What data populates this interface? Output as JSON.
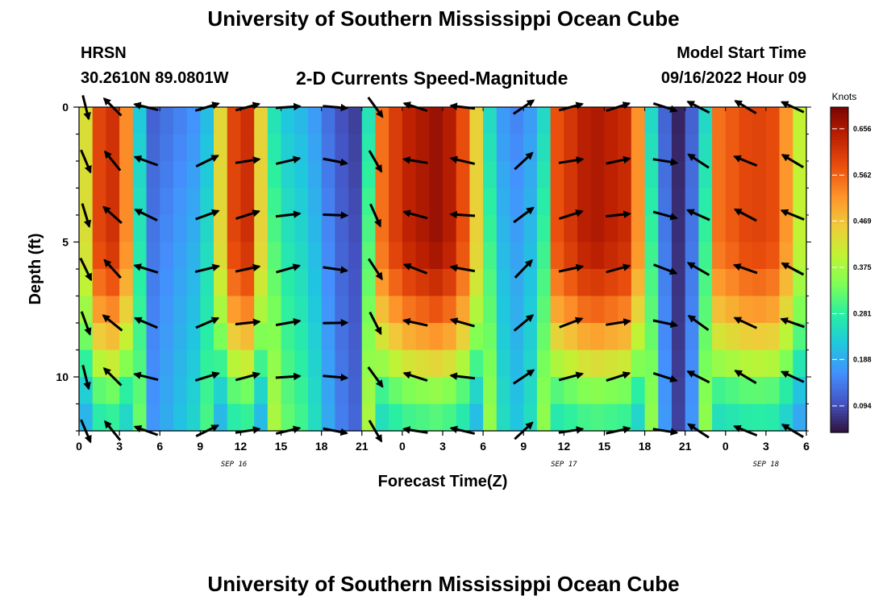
{
  "header": {
    "title_top": "University of Southern Mississippi Ocean Cube",
    "station": "HRSN",
    "coords": "30.2610N  89.0801W",
    "plot_title": "2-D Currents Speed-Magnitude",
    "model_label": "Model Start Time",
    "model_time": "09/16/2022 Hour 09",
    "title_bottom": "University of Southern Mississippi Ocean Cube"
  },
  "chart_data": {
    "type": "heatmap",
    "title": "2-D Currents Speed-Magnitude",
    "xlabel": "Forecast Time(Z)",
    "ylabel": "Depth (ft)",
    "x_range_hours": [
      0,
      54
    ],
    "ylim": [
      0,
      12
    ],
    "x_tick_labels": [
      "0",
      "3",
      "6",
      "9",
      "12",
      "15",
      "18",
      "21",
      "0",
      "3",
      "6",
      "9",
      "12",
      "15",
      "18",
      "21",
      "0",
      "3",
      "6"
    ],
    "y_ticks": [
      0,
      5,
      10
    ],
    "date_labels": [
      {
        "text": "SEP 16",
        "hour": 11.5
      },
      {
        "text": "SEP 17",
        "hour": 36
      },
      {
        "text": "SEP 18",
        "hour": 51
      }
    ],
    "colorbar": {
      "label": "Knots",
      "ticks": [
        0.094,
        0.188,
        0.281,
        0.375,
        0.469,
        0.562,
        0.656
      ],
      "tick_labels": [
        "0.094",
        "0.188",
        "0.281",
        "0.375",
        "0.469",
        "0.562",
        "0.656"
      ],
      "range": [
        0.04,
        0.7
      ],
      "colors": [
        "#30123b",
        "#4454c4",
        "#4490fe",
        "#1fc8de",
        "#29efa2",
        "#7dff56",
        "#c1f334",
        "#f1ca3a",
        "#fe922a",
        "#ea4f0d",
        "#be2102",
        "#7a0403"
      ]
    },
    "speed_depth_pattern": [
      0.52,
      0.56,
      0.56,
      0.56,
      0.56,
      0.56,
      0.55,
      0.52,
      0.48,
      0.43,
      0.37,
      0.3,
      0.26
    ],
    "speed_time_profile": [
      {
        "hour": 0,
        "speed": 0.28
      },
      {
        "hour": 1,
        "speed": 0.58
      },
      {
        "hour": 3,
        "speed": 0.63
      },
      {
        "hour": 4,
        "speed": 0.42
      },
      {
        "hour": 5,
        "speed": 0.13
      },
      {
        "hour": 7,
        "speed": 0.17
      },
      {
        "hour": 9,
        "speed": 0.21
      },
      {
        "hour": 10,
        "speed": 0.3
      },
      {
        "hour": 11,
        "speed": 0.58
      },
      {
        "hour": 12.5,
        "speed": 0.62
      },
      {
        "hour": 14,
        "speed": 0.36
      },
      {
        "hour": 15,
        "speed": 0.28
      },
      {
        "hour": 17,
        "speed": 0.24
      },
      {
        "hour": 19,
        "speed": 0.13
      },
      {
        "hour": 20.5,
        "speed": 0.1
      },
      {
        "hour": 21.5,
        "speed": 0.32
      },
      {
        "hour": 22.5,
        "speed": 0.55
      },
      {
        "hour": 24,
        "speed": 0.63
      },
      {
        "hour": 27,
        "speed": 0.68
      },
      {
        "hour": 29,
        "speed": 0.55
      },
      {
        "hour": 30,
        "speed": 0.35
      },
      {
        "hour": 31.5,
        "speed": 0.21
      },
      {
        "hour": 33,
        "speed": 0.17
      },
      {
        "hour": 34.5,
        "speed": 0.3
      },
      {
        "hour": 35.5,
        "speed": 0.58
      },
      {
        "hour": 38,
        "speed": 0.66
      },
      {
        "hour": 41,
        "speed": 0.62
      },
      {
        "hour": 42,
        "speed": 0.42
      },
      {
        "hour": 43,
        "speed": 0.18
      },
      {
        "hour": 44.5,
        "speed": 0.07
      },
      {
        "hour": 45.5,
        "speed": 0.14
      },
      {
        "hour": 46.5,
        "speed": 0.3
      },
      {
        "hour": 47.5,
        "speed": 0.55
      },
      {
        "hour": 50,
        "speed": 0.6
      },
      {
        "hour": 52,
        "speed": 0.58
      },
      {
        "hour": 53,
        "speed": 0.45
      },
      {
        "hour": 54,
        "speed": 0.35
      }
    ],
    "vector_rows_depth_ft": [
      0,
      2,
      4,
      6,
      8,
      10,
      12
    ],
    "vector_columns": [
      {
        "hour": 0.5,
        "dir_deg": -70
      },
      {
        "hour": 2.5,
        "dir_deg": 135
      },
      {
        "hour": 5.0,
        "dir_deg": 160
      },
      {
        "hour": 9.5,
        "dir_deg": 20
      },
      {
        "hour": 12.5,
        "dir_deg": 12
      },
      {
        "hour": 15.5,
        "dir_deg": 10
      },
      {
        "hour": 19.0,
        "dir_deg": -5
      },
      {
        "hour": 22.0,
        "dir_deg": -60
      },
      {
        "hour": 25.0,
        "dir_deg": 165
      },
      {
        "hour": 28.5,
        "dir_deg": 170
      },
      {
        "hour": 33.0,
        "dir_deg": 40
      },
      {
        "hour": 36.5,
        "dir_deg": 15
      },
      {
        "hour": 40.0,
        "dir_deg": 12
      },
      {
        "hour": 43.5,
        "dir_deg": -15
      },
      {
        "hour": 46.0,
        "dir_deg": 150
      },
      {
        "hour": 49.5,
        "dir_deg": 155
      },
      {
        "hour": 53.0,
        "dir_deg": 155
      }
    ]
  }
}
